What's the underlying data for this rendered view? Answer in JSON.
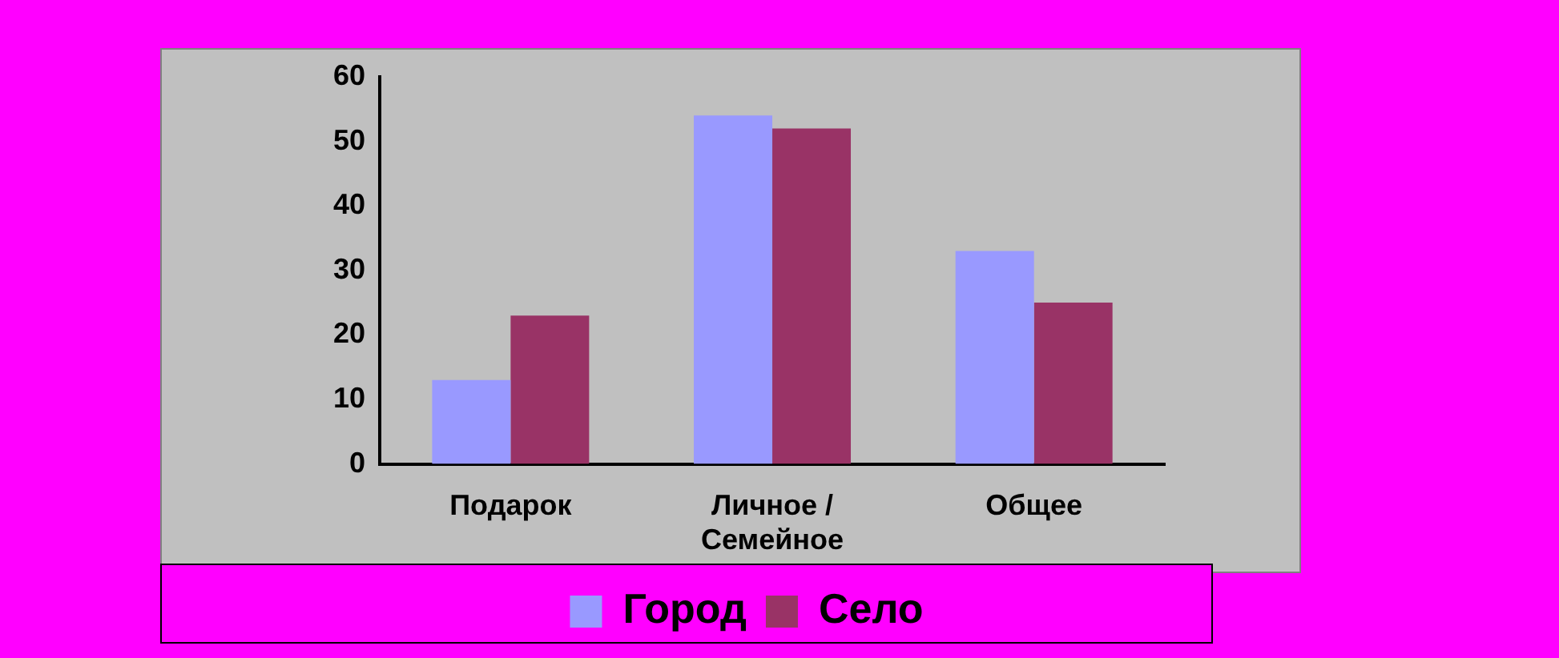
{
  "chart_data": {
    "type": "bar",
    "categories": [
      "Подарок",
      "Личное / Семейное",
      "Общее"
    ],
    "series": [
      {
        "name": "Город",
        "color": "#9999ff",
        "values": [
          13,
          54,
          33
        ]
      },
      {
        "name": "Село",
        "color": "#993366",
        "values": [
          23,
          52,
          25
        ]
      }
    ],
    "ylim": [
      0,
      60
    ],
    "yticks": [
      0,
      10,
      20,
      30,
      40,
      50,
      60
    ],
    "grid": false,
    "legend": "bottom"
  }
}
